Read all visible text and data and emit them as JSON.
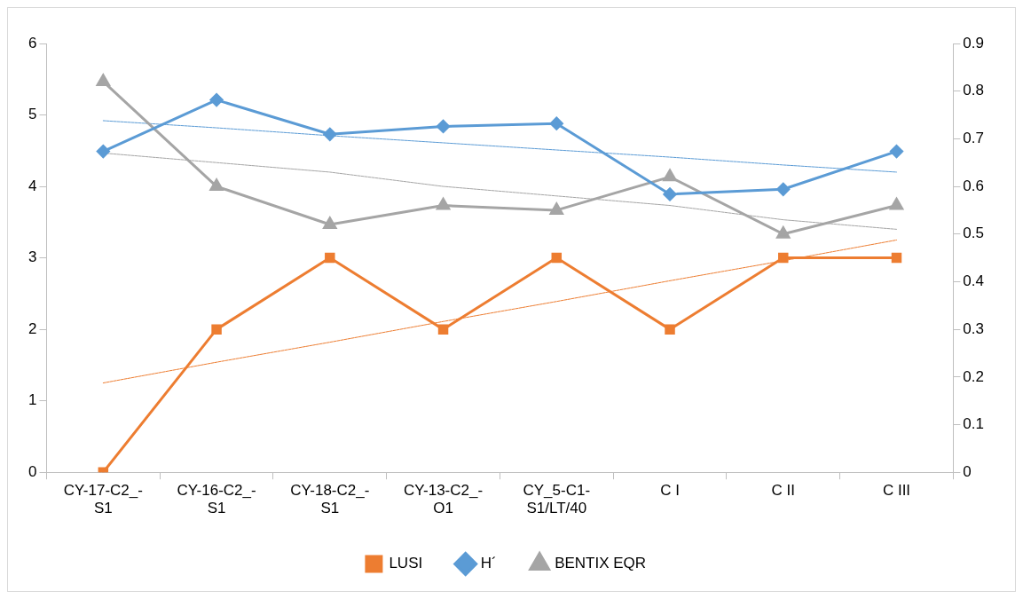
{
  "chart_data": {
    "type": "line",
    "categories": [
      "CY-17-C2_-S1",
      "CY-16-C2_-S1",
      "CY-18-C2_-S1",
      "CY-13-C2_-O1",
      "CY_5-C1-S1/LT/40",
      "C I",
      "C II",
      "C III"
    ],
    "series": [
      {
        "name": "LUSI",
        "color": "#ed7d31",
        "marker": "square",
        "values": [
          0,
          2,
          3,
          2,
          3,
          2,
          3,
          3
        ]
      },
      {
        "name": "H´",
        "color": "#5b9bd5",
        "marker": "diamond",
        "values": [
          4.49,
          5.21,
          4.73,
          4.84,
          4.88,
          3.89,
          3.96,
          4.49
        ]
      },
      {
        "name": "BENTIX EQR",
        "color": "#a5a5a5",
        "marker": "triangle",
        "axis": "y2",
        "values": [
          0.82,
          0.6,
          0.52,
          0.56,
          0.55,
          0.62,
          0.5,
          0.56
        ]
      },
      {
        "color": "#ed7d31",
        "marker": "none",
        "line_style": "dashed",
        "values": [
          1.25,
          1.54,
          1.82,
          2.11,
          2.39,
          2.68,
          2.96,
          3.25
        ]
      },
      {
        "color": "#5b9bd5",
        "marker": "none",
        "line_style": "dashed",
        "values": [
          4.92,
          4.82,
          4.71,
          4.61,
          4.51,
          4.41,
          4.3,
          4.2
        ]
      },
      {
        "color": "#a5a5a5",
        "marker": "none",
        "line_style": "dashed",
        "axis": "y2",
        "values": [
          0.67,
          0.65,
          0.63,
          0.6,
          0.58,
          0.56,
          0.53,
          0.51
        ]
      }
    ],
    "ylim": [
      0,
      6
    ],
    "yticks": [
      0,
      1,
      2,
      3,
      4,
      5,
      6
    ],
    "y2lim": [
      0,
      0.9
    ],
    "y2ticks": [
      0,
      0.1,
      0.2,
      0.3,
      0.4,
      0.5,
      0.6,
      0.7,
      0.8,
      0.9
    ],
    "grid": false,
    "legend": "bottom"
  }
}
